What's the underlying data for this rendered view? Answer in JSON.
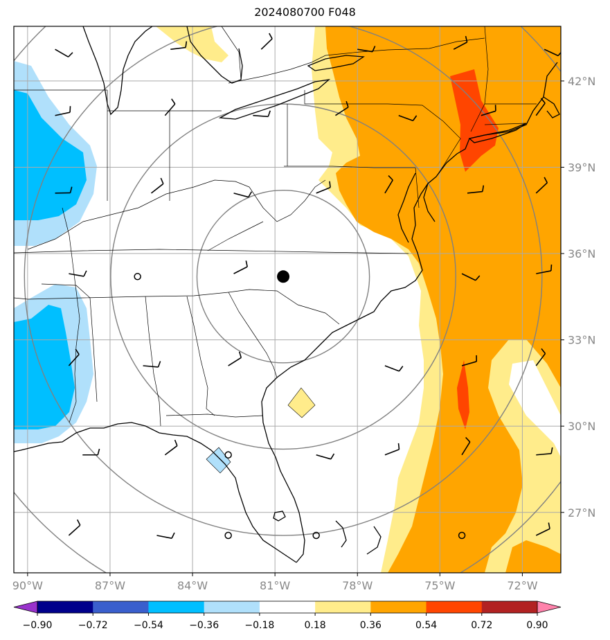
{
  "title": "2024080700 F048",
  "chart_data": {
    "type": "heatmap",
    "lon_range": [
      -90.5,
      -70.6
    ],
    "lat_range": [
      24.9,
      43.9
    ],
    "lon_ticks": [
      {
        "value": -90,
        "label": "90°W"
      },
      {
        "value": -87,
        "label": "87°W"
      },
      {
        "value": -84,
        "label": "84°W"
      },
      {
        "value": -81,
        "label": "81°W"
      },
      {
        "value": -78,
        "label": "78°W"
      },
      {
        "value": -75,
        "label": "75°W"
      },
      {
        "value": -72,
        "label": "72°W"
      }
    ],
    "lat_ticks": [
      {
        "value": 42,
        "label": "42°N"
      },
      {
        "value": 39,
        "label": "39°N"
      },
      {
        "value": 36,
        "label": "36°N"
      },
      {
        "value": 33,
        "label": "33°N"
      },
      {
        "value": 30,
        "label": "30°N"
      },
      {
        "value": 27,
        "label": "27°N"
      }
    ],
    "grid": true,
    "center_point": {
      "lon": -80.7,
      "lat": 35.2
    },
    "range_rings_deg": [
      3,
      6,
      9,
      12
    ],
    "colorbar": {
      "levels": [
        -0.9,
        -0.72,
        -0.54,
        -0.36,
        -0.18,
        0.18,
        0.36,
        0.54,
        0.72,
        0.9
      ],
      "labels": [
        "−0.90",
        "−0.72",
        "−0.54",
        "−0.36",
        "−0.18",
        "0.18",
        "0.36",
        "0.54",
        "0.72",
        "0.90"
      ],
      "colors": [
        "#9932cc",
        "#00008b",
        "#3a5fcd",
        "#00bfff",
        "#b0e0fb",
        "#ffffff",
        "#ffec8b",
        "#ffa500",
        "#ff4500",
        "#b22222",
        "#ff82ab"
      ],
      "extend": "both"
    },
    "shaded_regions": [
      {
        "level": "0.18-0.36",
        "color": "#ffec8b",
        "region": "Atlantic coast band and Great Lakes patch"
      },
      {
        "level": "0.36-0.54",
        "color": "#ffa500",
        "region": "Mid-Atlantic to western Atlantic"
      },
      {
        "level": "0.54-0.72",
        "color": "#ff4500",
        "region": "New York area and offshore near 74W 31N"
      },
      {
        "level": "-0.36--0.18",
        "color": "#b0e0fb",
        "region": "Mississippi valley and Gulf coast"
      },
      {
        "level": "-0.54--0.36",
        "color": "#00bfff",
        "region": "Illinois and Mississippi/Louisiana"
      }
    ],
    "wind_barbs": [
      {
        "lon": -89.0,
        "lat": 43.1
      },
      {
        "lon": -84.8,
        "lat": 43.1
      },
      {
        "lon": -81.5,
        "lat": 43.1
      },
      {
        "lon": -78.0,
        "lat": 43.1
      },
      {
        "lon": -74.5,
        "lat": 43.1
      },
      {
        "lon": -71.2,
        "lat": 43.1
      },
      {
        "lon": -89.0,
        "lat": 40.8
      },
      {
        "lon": -85.0,
        "lat": 40.8
      },
      {
        "lon": -81.8,
        "lat": 40.8
      },
      {
        "lon": -78.8,
        "lat": 40.8
      },
      {
        "lon": -76.5,
        "lat": 40.8
      },
      {
        "lon": -73.5,
        "lat": 40.8
      },
      {
        "lon": -71.5,
        "lat": 40.8
      },
      {
        "lon": -89.0,
        "lat": 38.1
      },
      {
        "lon": -85.5,
        "lat": 38.1
      },
      {
        "lon": -82.5,
        "lat": 38.1
      },
      {
        "lon": -79.5,
        "lat": 38.1
      },
      {
        "lon": -77.0,
        "lat": 38.1
      },
      {
        "lon": -74.0,
        "lat": 38.1
      },
      {
        "lon": -71.5,
        "lat": 38.1
      },
      {
        "lon": -88.5,
        "lat": 35.3
      },
      {
        "lon": -82.5,
        "lat": 35.3
      },
      {
        "lon": -74.2,
        "lat": 35.3
      },
      {
        "lon": -71.5,
        "lat": 35.3
      },
      {
        "lon": -88.5,
        "lat": 32.1
      },
      {
        "lon": -85.8,
        "lat": 32.1
      },
      {
        "lon": -82.7,
        "lat": 32.1
      },
      {
        "lon": -77.0,
        "lat": 32.1
      },
      {
        "lon": -74.2,
        "lat": 32.1
      },
      {
        "lon": -71.5,
        "lat": 32.1
      },
      {
        "lon": -88.0,
        "lat": 29.0
      },
      {
        "lon": -85.0,
        "lat": 29.0
      },
      {
        "lon": -79.5,
        "lat": 29.0
      },
      {
        "lon": -77.0,
        "lat": 29.0
      },
      {
        "lon": -74.2,
        "lat": 29.0
      },
      {
        "lon": -71.5,
        "lat": 29.0
      },
      {
        "lon": -88.5,
        "lat": 26.2
      },
      {
        "lon": -85.3,
        "lat": 26.2
      },
      {
        "lon": -71.5,
        "lat": 26.2
      }
    ],
    "calm_markers": [
      {
        "lon": -86.0,
        "lat": 35.2
      },
      {
        "lon": -82.7,
        "lat": 29.0
      },
      {
        "lon": -82.7,
        "lat": 26.2
      },
      {
        "lon": -79.5,
        "lat": 26.2
      },
      {
        "lon": -74.2,
        "lat": 26.2
      }
    ]
  }
}
